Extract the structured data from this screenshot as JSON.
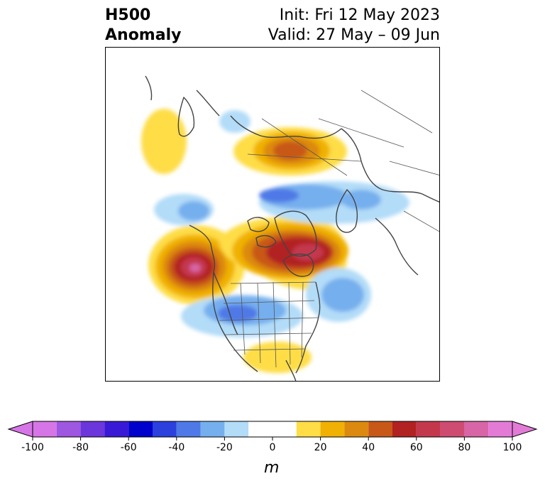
{
  "header": {
    "title_line1": "H500",
    "title_line2": "Anomaly",
    "init_text": "Init: Fri 12 May 2023",
    "valid_text": "Valid: 27 May – 09 Jun"
  },
  "colorbar": {
    "units": "m",
    "tick_labels": [
      "-100",
      "-80",
      "-60",
      "-40",
      "-20",
      "0",
      "20",
      "40",
      "60",
      "80",
      "100"
    ],
    "levels": [
      -100,
      -90,
      -80,
      -70,
      -60,
      -50,
      -40,
      -30,
      -20,
      -10,
      10,
      20,
      30,
      40,
      50,
      60,
      70,
      80,
      90,
      100
    ],
    "colors": [
      "#d675e6",
      "#9d57e0",
      "#6b36db",
      "#3a19d6",
      "#0000cc",
      "#2b40dd",
      "#4f79e6",
      "#76afee",
      "#b2dcf8",
      "#ffffff",
      "#fedd47",
      "#f0b104",
      "#dc8a0f",
      "#c85818",
      "#b22222",
      "#c4384e",
      "#ce4b72",
      "#d865a6",
      "#e37bd6"
    ],
    "extend": "both"
  },
  "map": {
    "projection": "polar-stereographic",
    "region": "North America / North Pole / Eurasia",
    "anomaly_centers": [
      {
        "sign": "positive",
        "peak_m": 80,
        "location": "Northeast Pacific off British Columbia"
      },
      {
        "sign": "positive",
        "peak_m": 70,
        "location": "Northern Canada / Hudson Bay"
      },
      {
        "sign": "positive",
        "peak_m": 50,
        "location": "Siberia"
      },
      {
        "sign": "positive",
        "peak_m": 20,
        "location": "Southeastern United States"
      },
      {
        "sign": "positive",
        "peak_m": 20,
        "location": "North Atlantic"
      },
      {
        "sign": "negative",
        "peak_m": -40,
        "location": "Central United States"
      },
      {
        "sign": "negative",
        "peak_m": -30,
        "location": "Western North Atlantic"
      },
      {
        "sign": "negative",
        "peak_m": -40,
        "location": "Arctic Ocean"
      },
      {
        "sign": "negative",
        "peak_m": -30,
        "location": "Bering Sea / Alaska"
      },
      {
        "sign": "negative",
        "peak_m": -20,
        "location": "Greenland Sea"
      }
    ]
  }
}
